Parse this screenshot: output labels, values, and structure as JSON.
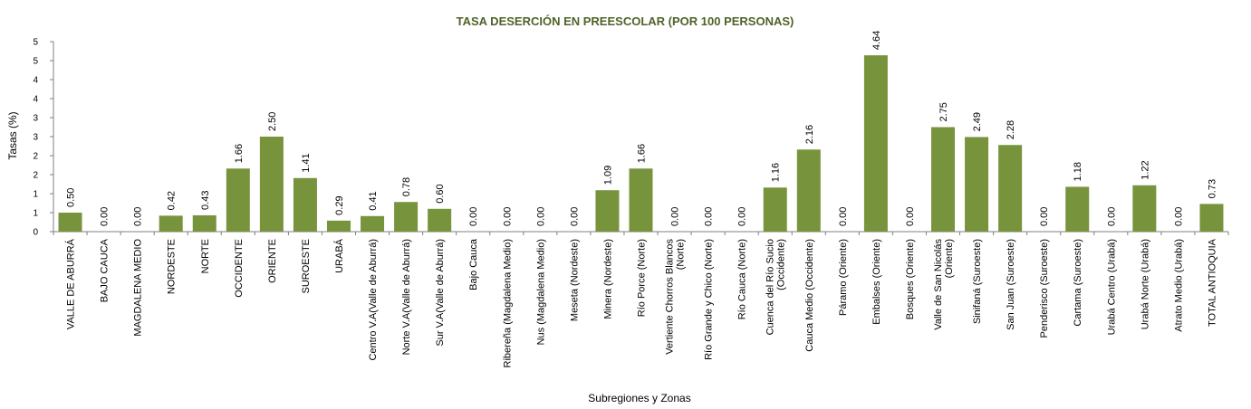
{
  "chart_data": {
    "type": "bar",
    "title": "TASA DESERCIÓN EN PREESCOLAR (POR 100 PERSONAS)",
    "xlabel": "Subregiones y Zonas",
    "ylabel": "Tasas (%)",
    "ylim": [
      0,
      5
    ],
    "yticks": [
      0,
      0.5,
      1,
      1.5,
      2,
      2.5,
      3,
      3.5,
      4,
      4.5,
      5
    ],
    "ytick_labels": [
      "0",
      "1",
      "1",
      "2",
      "2",
      "3",
      "3",
      "4",
      "4",
      "5",
      "5"
    ],
    "bar_color": "#77933c",
    "grid": false,
    "categories": [
      [
        "VALLE DE ABURRÁ"
      ],
      [
        "BAJO CAUCA"
      ],
      [
        "MAGDALENA MEDIO"
      ],
      [
        "NORDESTE"
      ],
      [
        "NORTE"
      ],
      [
        "OCCIDENTE"
      ],
      [
        "ORIENTE"
      ],
      [
        "SUROESTE"
      ],
      [
        "URABÁ"
      ],
      [
        "Centro V.A(Valle de Aburrá)"
      ],
      [
        "Norte V.A(Valle de Aburrá)"
      ],
      [
        "Sur  V.A(Valle de Aburrá)"
      ],
      [
        "Bajo Cauca"
      ],
      [
        "Ribereña  (Magdalena Medio)"
      ],
      [
        "Nus  (Magdalena Medio)"
      ],
      [
        "Meseta  (Nordeste)"
      ],
      [
        "Minera  (Nordeste)"
      ],
      [
        "Río Porce   (Norte)"
      ],
      [
        "Vertiente Chorros Blancos",
        "(Norte)"
      ],
      [
        "Río Grande y Chico  (Norte)"
      ],
      [
        "Río Cauca  (Norte)"
      ],
      [
        "Cuenca del Río Sucio",
        "(Occidente)"
      ],
      [
        "Cauca Medio  (Occidente)"
      ],
      [
        "Páramo  (Oriente)"
      ],
      [
        "Embalses  (Oriente)"
      ],
      [
        "Bosques  (Oriente)"
      ],
      [
        "Valle de San Nicolás",
        "(Oriente)"
      ],
      [
        "Sinifaná  (Suroeste)"
      ],
      [
        "San Juan  (Suroeste)"
      ],
      [
        "Penderisco  (Suroeste)"
      ],
      [
        "Cartama  (Suroeste)"
      ],
      [
        "Urabá Centro  (Urabá)"
      ],
      [
        "Urabá Norte  (Urabá)"
      ],
      [
        "Atrato Medio  (Urabá)"
      ],
      [
        "TOTAL ANTIOQUIA"
      ]
    ],
    "values": [
      0.5,
      0.0,
      0.0,
      0.42,
      0.43,
      1.66,
      2.5,
      1.41,
      0.29,
      0.41,
      0.78,
      0.6,
      0.0,
      0.0,
      0.0,
      0.0,
      1.09,
      1.66,
      0.0,
      0.0,
      0.0,
      1.16,
      2.16,
      0.0,
      4.64,
      0.0,
      2.75,
      2.49,
      2.28,
      0.0,
      1.18,
      0.0,
      1.22,
      0.0,
      0.73
    ],
    "data_labels": [
      "0.50",
      "0.00",
      "0.00",
      "0.42",
      "0.43",
      "1.66",
      "2.50",
      "1.41",
      "0.29",
      "0.41",
      "0.78",
      "0.60",
      "0.00",
      "0.00",
      "0.00",
      "0.00",
      "1.09",
      "1.66",
      "0.00",
      "0.00",
      "0.00",
      "1.16",
      "2.16",
      "0.00",
      "4.64",
      "0.00",
      "2.75",
      "2.49",
      "2.28",
      "0.00",
      "1.18",
      "0.00",
      "1.22",
      "0.00",
      "0.73"
    ]
  }
}
